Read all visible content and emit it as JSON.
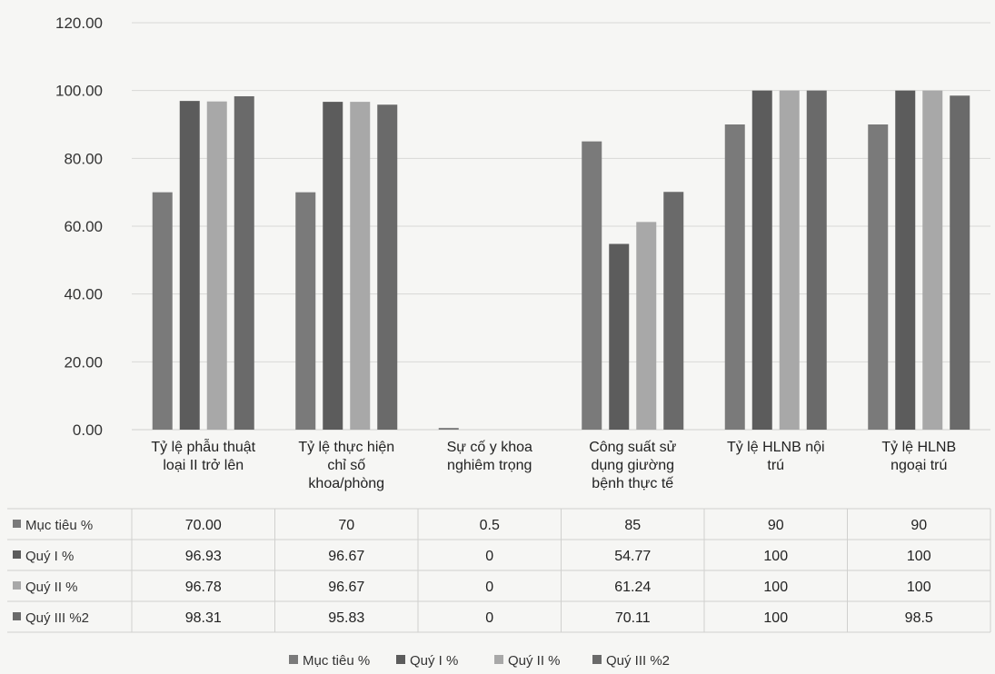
{
  "chart_data": {
    "type": "bar",
    "ylim": [
      0,
      120
    ],
    "yticks": [
      "0.00",
      "20.00",
      "40.00",
      "60.00",
      "80.00",
      "100.00",
      "120.00"
    ],
    "grid": true,
    "legend_position": "bottom",
    "categories": [
      [
        "Tỷ lệ phẫu thuật",
        "loại II trở lên"
      ],
      [
        "Tỷ lệ thực hiện",
        "chỉ số",
        "khoa/phòng"
      ],
      [
        "Sự cố y khoa",
        "nghiêm trọng"
      ],
      [
        "Công suất sử",
        "dụng giường",
        "bệnh thực tế"
      ],
      [
        "Tỷ lệ HLNB nội",
        "trú"
      ],
      [
        "Tỷ lệ HLNB",
        "ngoại trú"
      ]
    ],
    "series": [
      {
        "name": "Mục tiêu %",
        "color": "#7a7a7a",
        "values": [
          70,
          70,
          0.5,
          85,
          90,
          90
        ],
        "labels": [
          "70.00",
          "70",
          "0.5",
          "85",
          "90",
          "90"
        ]
      },
      {
        "name": "Quý I %",
        "color": "#5c5c5c",
        "values": [
          96.93,
          96.67,
          0,
          54.77,
          100,
          100
        ],
        "labels": [
          "96.93",
          "96.67",
          "0",
          "54.77",
          "100",
          "100"
        ]
      },
      {
        "name": "Quý II %",
        "color": "#a8a8a8",
        "values": [
          96.78,
          96.67,
          0,
          61.24,
          100,
          100
        ],
        "labels": [
          "96.78",
          "96.67",
          "0",
          "61.24",
          "100",
          "100"
        ]
      },
      {
        "name": "Quý III %2",
        "color": "#6a6a6a",
        "values": [
          98.31,
          95.83,
          0,
          70.11,
          100,
          98.5
        ],
        "labels": [
          "98.31",
          "95.83",
          "0",
          "70.11",
          "100",
          "98.5"
        ]
      }
    ]
  }
}
